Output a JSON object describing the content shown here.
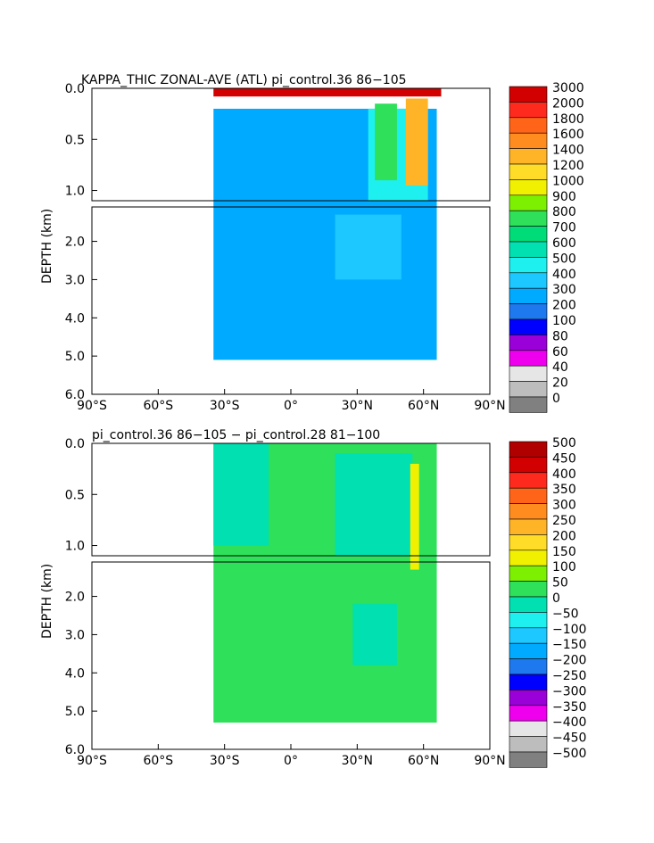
{
  "chart_data": [
    {
      "type": "heatmap",
      "title": "KAPPA_THIC ZONAL-AVE (ATL) pi_control.36 \u000186−105\u0001",
      "ylabel": "DEPTH (km)",
      "xlabel": "",
      "x_ticks": [
        "90°S",
        "60°S",
        "30°S",
        "0°",
        "30°N",
        "60°N",
        "90°N"
      ],
      "y_ticks_upper": [
        "0.0",
        "0.5",
        "1.0"
      ],
      "y_ticks_lower": [
        "2.0",
        "3.0",
        "4.0",
        "5.0",
        "6.0"
      ],
      "xlim": [
        -90,
        90
      ],
      "ylim": [
        6.0,
        0.0
      ],
      "legend_levels": [
        "0",
        "20",
        "40",
        "60",
        "80",
        "100",
        "200",
        "300",
        "400",
        "500",
        "600",
        "700",
        "800",
        "900",
        "1000",
        "1200",
        "1400",
        "1600",
        "1800",
        "2000",
        "3000"
      ],
      "legend_colors": [
        "#808080",
        "#bdbdbd",
        "#e6e6e6",
        "#ee00ee",
        "#9a00d8",
        "#0000ff",
        "#1e78ee",
        "#00aaff",
        "#1cc8ff",
        "#1ef0f0",
        "#00e0b0",
        "#00dc78",
        "#2ee05a",
        "#7cf000",
        "#f0f000",
        "#ffdc28",
        "#ffb428",
        "#ff8c1e",
        "#ff6418",
        "#ff2a1e",
        "#d20000"
      ],
      "series": [
        {
          "name": "",
          "regions": [
            {
              "color": "#00aaff",
              "lat": [
                -35,
                66
              ],
              "depth": [
                0.2,
                5.1
              ]
            },
            {
              "color": "#1cc8ff",
              "lat": [
                20,
                50
              ],
              "depth": [
                1.3,
                3.0
              ]
            },
            {
              "color": "#1ef0f0",
              "lat": [
                35,
                62
              ],
              "depth": [
                0.2,
                1.1
              ]
            },
            {
              "color": "#2ee05a",
              "lat": [
                38,
                48
              ],
              "depth": [
                0.15,
                0.9
              ]
            },
            {
              "color": "#ffb428",
              "lat": [
                52,
                62
              ],
              "depth": [
                0.1,
                0.95
              ]
            },
            {
              "color": "#d20000",
              "lat": [
                -35,
                68
              ],
              "depth": [
                0.0,
                0.08
              ]
            }
          ]
        }
      ]
    },
    {
      "type": "heatmap",
      "title": "pi_control.36 \u000186−105\u0001 − pi_control.28 \u000181−100\u0001",
      "ylabel": "DEPTH (km)",
      "xlabel": "",
      "x_ticks": [
        "90°S",
        "60°S",
        "30°S",
        "0°",
        "30°N",
        "60°N",
        "90°N"
      ],
      "y_ticks_upper": [
        "0.0",
        "0.5",
        "1.0"
      ],
      "y_ticks_lower": [
        "2.0",
        "3.0",
        "4.0",
        "5.0",
        "6.0"
      ],
      "xlim": [
        -90,
        90
      ],
      "ylim": [
        6.0,
        0.0
      ],
      "legend_levels": [
        "−500",
        "−450",
        "−400",
        "−350",
        "−300",
        "−250",
        "−200",
        "−150",
        "−100",
        "−50",
        "0",
        "50",
        "100",
        "150",
        "200",
        "250",
        "300",
        "350",
        "400",
        "450",
        "500"
      ],
      "legend_colors": [
        "#808080",
        "#bdbdbd",
        "#e6e6e6",
        "#ee00ee",
        "#9a00d8",
        "#0000ff",
        "#1e78ee",
        "#00aaff",
        "#1cc8ff",
        "#1ef0f0",
        "#00e0b0",
        "#2ee05a",
        "#7cf000",
        "#f0f000",
        "#ffdc28",
        "#ffb428",
        "#ff8c1e",
        "#ff6418",
        "#ff2a1e",
        "#d20000",
        "#b00000"
      ],
      "series": [
        {
          "name": "",
          "regions": [
            {
              "color": "#2ee05a",
              "lat": [
                -35,
                66
              ],
              "depth": [
                0.0,
                5.3
              ]
            },
            {
              "color": "#00e0b0",
              "lat": [
                -35,
                -10
              ],
              "depth": [
                0.0,
                1.0
              ]
            },
            {
              "color": "#00e0b0",
              "lat": [
                20,
                55
              ],
              "depth": [
                0.1,
                1.1
              ]
            },
            {
              "color": "#00e0b0",
              "lat": [
                28,
                48
              ],
              "depth": [
                2.2,
                3.8
              ]
            },
            {
              "color": "#f0f000",
              "lat": [
                54,
                58
              ],
              "depth": [
                0.2,
                1.3
              ]
            }
          ]
        }
      ]
    }
  ]
}
